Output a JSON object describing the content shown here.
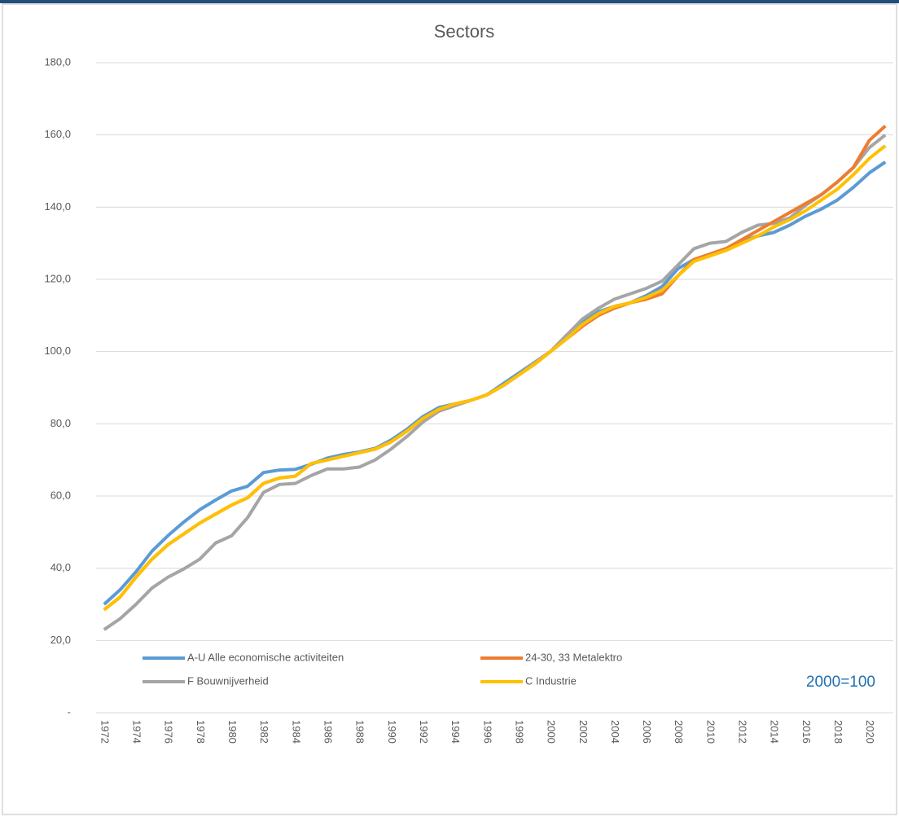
{
  "chart_data": {
    "type": "line",
    "title": "Sectors",
    "annotation": "2000=100",
    "categories": [
      "1972",
      null,
      "1974",
      null,
      "1976",
      null,
      "1978",
      null,
      "1980",
      null,
      "1982",
      null,
      "1984",
      null,
      "1986",
      null,
      "1988",
      null,
      "1990",
      null,
      "1992",
      null,
      "1994",
      null,
      "1996",
      null,
      "1998",
      null,
      "2000",
      null,
      "2002",
      null,
      "2004",
      null,
      "2006",
      null,
      "2008",
      null,
      "2010",
      null,
      "2012",
      null,
      "2014",
      null,
      "2016",
      null,
      "2018",
      null,
      "2020",
      null
    ],
    "series": [
      {
        "name": "A-U Alle economische activiteiten",
        "color": "#5b9bd5",
        "values": [
          30,
          34,
          39,
          44.7,
          49,
          52.8,
          56.2,
          58.9,
          61.4,
          62.7,
          66.5,
          67.2,
          67.4,
          68.8,
          70.5,
          71.5,
          72.2,
          73.2,
          75.5,
          78.5,
          82,
          84.5,
          85.5,
          86.5,
          88,
          91,
          94,
          97,
          100,
          104.5,
          108.5,
          111,
          112.5,
          113.5,
          115.5,
          118,
          123,
          125.5,
          127,
          128.5,
          130.5,
          132,
          133,
          135,
          137.5,
          139.5,
          142,
          145.5,
          149.5,
          152.5
        ]
      },
      {
        "name": "24-30, 33 Metalektro",
        "color": "#ed7d31",
        "values": [
          28.5,
          32,
          37.5,
          42.5,
          46.5,
          49.5,
          52.5,
          55,
          57.5,
          59.5,
          63.5,
          65,
          65.5,
          69,
          70,
          71,
          72,
          73,
          75,
          78,
          81.5,
          84,
          85.5,
          86.5,
          88,
          90.5,
          93.5,
          96.5,
          100,
          103.5,
          107,
          110,
          112,
          113.5,
          114.5,
          116,
          121,
          125.5,
          127,
          128.5,
          131,
          133.5,
          136,
          138.5,
          141,
          143.5,
          147,
          151,
          158.5,
          162.5
        ]
      },
      {
        "name": "F Bouwnijverheid",
        "color": "#a5a5a5",
        "values": [
          23,
          26,
          30,
          34.5,
          37.5,
          39.8,
          42.5,
          47,
          49,
          54,
          61,
          63.2,
          63.5,
          65.7,
          67.5,
          67.5,
          68,
          70,
          73,
          76.5,
          80.5,
          83.5,
          85,
          86.5,
          88,
          90.5,
          93.5,
          97,
          100,
          104.5,
          109,
          112,
          114.5,
          116,
          117.5,
          119.5,
          124,
          128.5,
          130,
          130.5,
          133,
          135,
          135.5,
          137,
          140.5,
          143.5,
          147,
          151,
          156.5,
          160
        ]
      },
      {
        "name": "C Industrie",
        "color": "#ffc000",
        "values": [
          28.5,
          32,
          37.5,
          42.5,
          46.5,
          49.5,
          52.5,
          55,
          57.5,
          59.5,
          63.5,
          65,
          65.5,
          69,
          70,
          71,
          72,
          73,
          75,
          78,
          81.5,
          84,
          85.5,
          86.5,
          88,
          90.5,
          93.5,
          96.5,
          100,
          103.5,
          107.5,
          110.5,
          112.5,
          113.5,
          115,
          117,
          121,
          125,
          126.5,
          128,
          130,
          132,
          134.5,
          136.5,
          139,
          142,
          145,
          149,
          153.5,
          157
        ]
      }
    ],
    "ylim": [
      0,
      180
    ],
    "yticks": [
      {
        "value": 0,
        "label": "-"
      },
      {
        "value": 20,
        "label": "20,0"
      },
      {
        "value": 40,
        "label": "40,0"
      },
      {
        "value": 60,
        "label": "60,0"
      },
      {
        "value": 80,
        "label": "80,0"
      },
      {
        "value": 100,
        "label": "100,0"
      },
      {
        "value": 120,
        "label": "120,0"
      },
      {
        "value": 140,
        "label": "140,0"
      },
      {
        "value": 160,
        "label": "160,0"
      },
      {
        "value": 180,
        "label": "180,0"
      }
    ],
    "grid": true
  }
}
